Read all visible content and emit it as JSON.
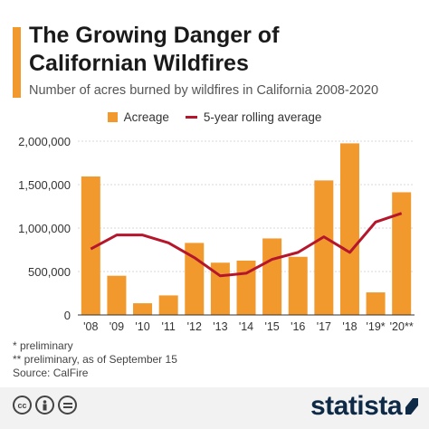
{
  "colors": {
    "bar": "#f2992e",
    "line": "#b5162b",
    "accent": "#f2992e",
    "brand": "#0f2a47"
  },
  "header": {
    "title_line1": "The Growing Danger of",
    "title_line2": "Californian Wildfires",
    "subtitle": "Number of acres burned by wildfires in California 2008-2020"
  },
  "chart_data": {
    "type": "bar",
    "title": "The Growing Danger of Californian Wildfires",
    "subtitle": "Number of acres burned by wildfires in California 2008-2020",
    "categories": [
      "'08",
      "'09",
      "'10",
      "'11",
      "'12",
      "'13",
      "'14",
      "'15",
      "'16",
      "'17",
      "'18",
      "'19*",
      "'20**"
    ],
    "series": [
      {
        "name": "Acreage",
        "type": "bar",
        "values": [
          1593690,
          451000,
          134700,
          225000,
          829200,
          601600,
          625500,
          880900,
          669500,
          1548400,
          1975100,
          259800,
          1412000
        ]
      },
      {
        "name": "5-year rolling average",
        "type": "line",
        "values": [
          760000,
          920000,
          920000,
          830000,
          660000,
          450000,
          480000,
          640000,
          720000,
          900000,
          720000,
          1070000,
          1170000
        ]
      }
    ],
    "yticks": [
      "0",
      "500,000",
      "1,000,000",
      "1,500,000",
      "2,000,000"
    ],
    "ylim": [
      0,
      2000000
    ],
    "xlabel": "",
    "ylabel": "",
    "grid": true,
    "legend_position": "top-center"
  },
  "notes": {
    "line1": "*   preliminary",
    "line2": "** preliminary, as of September 15",
    "source": "Source: CalFire"
  },
  "footer": {
    "icons": [
      "cc-icon",
      "attribution-icon",
      "no-derivatives-icon"
    ],
    "brand": "statista"
  }
}
